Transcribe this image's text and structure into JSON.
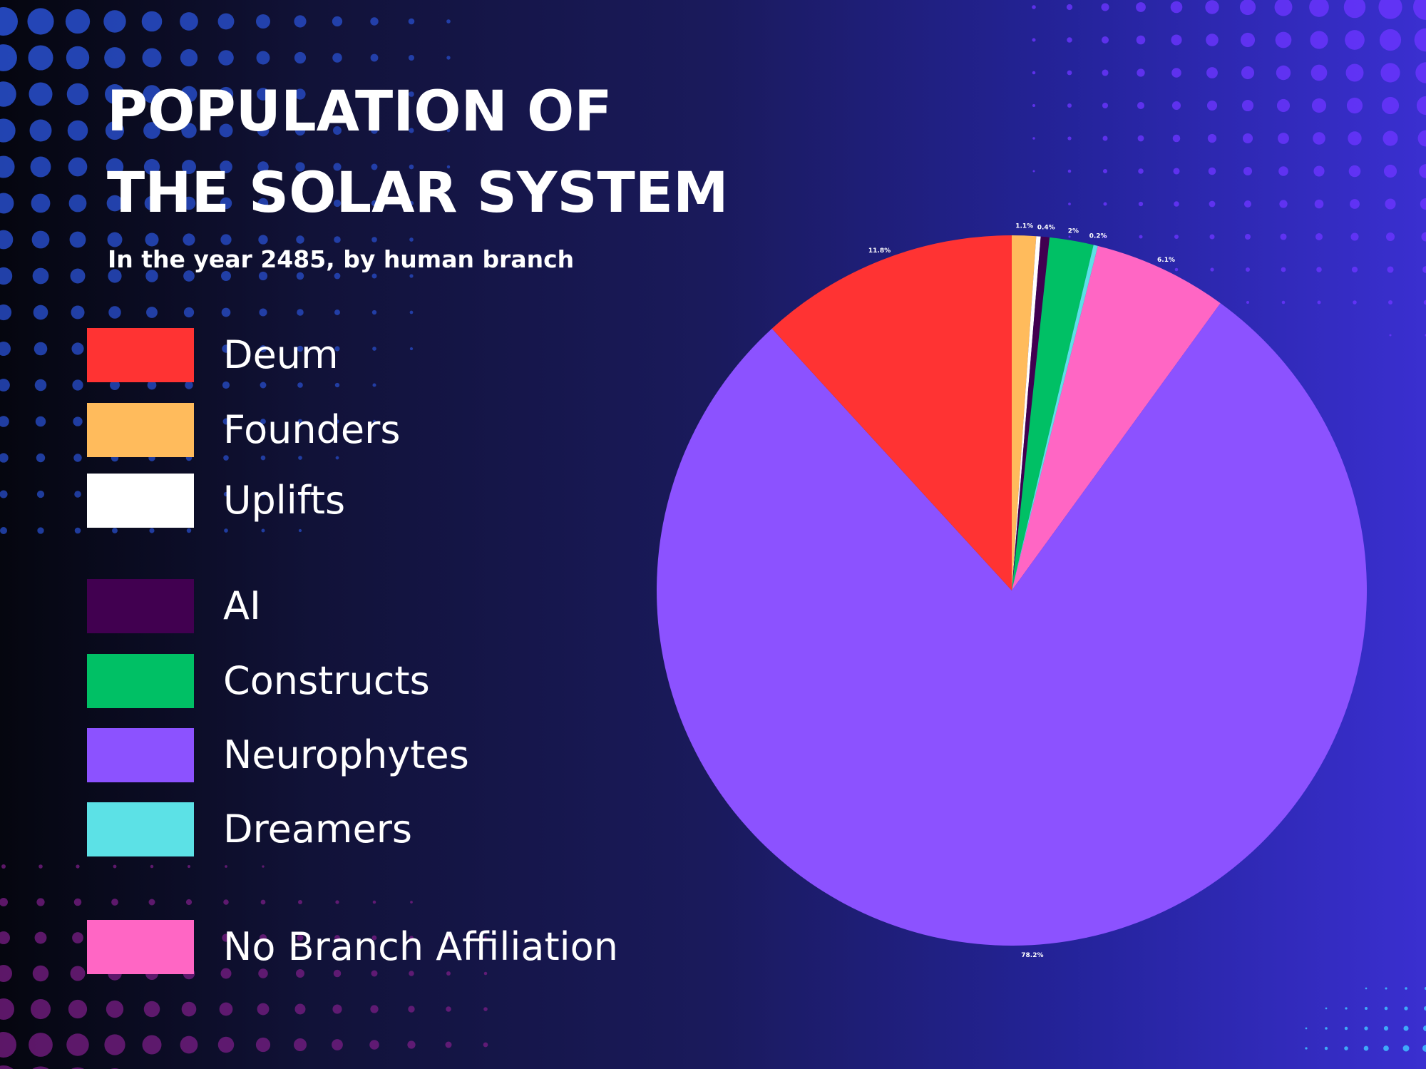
{
  "title_line1": "POPULATION OF",
  "title_line2": "THE SOLAR SYSTEM",
  "subtitle": "In the year 2485, by human branch",
  "legend": [
    {
      "label": "Deum",
      "color": "#ff3333"
    },
    {
      "label": "Founders",
      "color": "#ffbb5c"
    },
    {
      "label": "Uplifts",
      "color": "#ffffff"
    },
    {
      "label": "AI",
      "color": "#410050"
    },
    {
      "label": "Constructs",
      "color": "#00c065"
    },
    {
      "label": "Neurophytes",
      "color": "#8c52ff"
    },
    {
      "label": "Dreamers",
      "color": "#5ce1e6"
    },
    {
      "label": "No Branch Affiliation",
      "color": "#ff66c4"
    }
  ],
  "chart_data": {
    "type": "pie",
    "title": "POPULATION OF THE SOLAR SYSTEM",
    "subtitle": "In the year 2485, by human branch",
    "legend_position": "left",
    "slices": [
      {
        "name": "Founders",
        "value": 1.1,
        "label": "1.1%",
        "color": "#ffbb5c"
      },
      {
        "name": "Uplifts",
        "value": 0.2,
        "label": "",
        "color": "#ffffff"
      },
      {
        "name": "AI",
        "value": 0.4,
        "label": "0.4%",
        "color": "#410050"
      },
      {
        "name": "Constructs",
        "value": 2,
        "label": "2%",
        "color": "#00c065"
      },
      {
        "name": "Dreamers",
        "value": 0.2,
        "label": "0.2%",
        "color": "#5ce1e6"
      },
      {
        "name": "No Branch Affiliation",
        "value": 6.1,
        "label": "6.1%",
        "color": "#ff66c4"
      },
      {
        "name": "Neurophytes",
        "value": 78.2,
        "label": "78.2%",
        "color": "#8c52ff"
      },
      {
        "name": "Deum",
        "value": 11.8,
        "label": "11.8%",
        "color": "#ff3333"
      }
    ]
  }
}
